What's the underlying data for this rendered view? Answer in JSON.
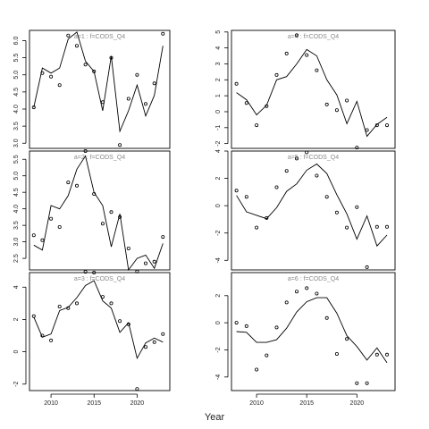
{
  "chart_data": {
    "type": "line",
    "xlabel": "Year",
    "xlim": [
      2007.5,
      2023.8
    ],
    "xticks": [
      2010,
      2015,
      2020
    ],
    "panels": [
      {
        "title": "a=1 : f=CODS_Q4",
        "ylim": [
          2.85,
          6.3
        ],
        "yticks": [
          3.0,
          3.5,
          4.0,
          4.5,
          5.0,
          5.5,
          6.0
        ],
        "yticklabels": [
          "3.0",
          "3.5",
          "4.0",
          "4.5",
          "5.0",
          "5.5",
          "6.0"
        ],
        "show_x_ticks": false,
        "series": [
          {
            "type": "line",
            "x": [
              2008,
              2009,
              2010,
              2011,
              2012,
              2013,
              2014,
              2015,
              2016,
              2017,
              2018,
              2019,
              2020,
              2021,
              2022,
              2023
            ],
            "y": [
              4.05,
              5.2,
              5.05,
              5.2,
              6.05,
              6.25,
              5.4,
              5.1,
              3.95,
              5.55,
              3.35,
              3.95,
              4.7,
              3.8,
              4.4,
              5.85
            ]
          },
          {
            "type": "points",
            "x": [
              2008,
              2009,
              2010,
              2011,
              2012,
              2013,
              2014,
              2015,
              2016,
              2017,
              2018,
              2019,
              2020,
              2021,
              2022,
              2023
            ],
            "y": [
              4.05,
              5.05,
              4.95,
              4.7,
              6.15,
              5.85,
              5.3,
              5.1,
              4.2,
              5.5,
              2.95,
              4.3,
              5.0,
              4.15,
              4.75,
              6.2
            ]
          }
        ]
      },
      {
        "title": "a=2 : f=CODS_Q4",
        "ylim": [
          2.15,
          5.75
        ],
        "yticks": [
          2.5,
          3.0,
          3.5,
          4.0,
          4.5,
          5.0,
          5.5
        ],
        "yticklabels": [
          "2.5",
          "3.0",
          "3.5",
          "4.0",
          "4.5",
          "5.0",
          "5.5"
        ],
        "show_x_ticks": false,
        "series": [
          {
            "type": "line",
            "x": [
              2008,
              2009,
              2010,
              2011,
              2012,
              2013,
              2014,
              2015,
              2016,
              2017,
              2018,
              2019,
              2020,
              2021,
              2022,
              2023
            ],
            "y": [
              2.9,
              2.75,
              4.1,
              4.0,
              4.4,
              5.2,
              5.6,
              4.5,
              4.1,
              2.85,
              3.85,
              2.15,
              2.5,
              2.6,
              2.2,
              2.95
            ]
          },
          {
            "type": "points",
            "x": [
              2008,
              2009,
              2010,
              2011,
              2012,
              2013,
              2014,
              2015,
              2016,
              2017,
              2018,
              2019,
              2020,
              2021,
              2022,
              2023
            ],
            "y": [
              3.2,
              3.05,
              3.7,
              3.45,
              4.8,
              4.7,
              5.75,
              4.45,
              3.55,
              3.9,
              3.75,
              2.8,
              2.1,
              2.35,
              2.4,
              3.15
            ]
          }
        ]
      },
      {
        "title": "a=3 : f=CODS_Q4",
        "ylim": [
          -2.4,
          4.9
        ],
        "yticks": [
          -2,
          0,
          2,
          4
        ],
        "yticklabels": [
          "-2",
          "0",
          "2",
          "4"
        ],
        "show_x_ticks": true,
        "series": [
          {
            "type": "line",
            "x": [
              2008,
              2009,
              2010,
              2011,
              2012,
              2013,
              2014,
              2015,
              2016,
              2017,
              2018,
              2019,
              2020,
              2021,
              2022,
              2023
            ],
            "y": [
              2.15,
              0.9,
              1.1,
              2.55,
              2.75,
              3.35,
              4.1,
              4.4,
              3.15,
              2.7,
              1.2,
              1.8,
              -0.4,
              0.55,
              0.85,
              0.6
            ]
          },
          {
            "type": "points",
            "x": [
              2008,
              2009,
              2010,
              2011,
              2012,
              2013,
              2014,
              2015,
              2016,
              2017,
              2018,
              2019,
              2020,
              2021,
              2022,
              2023
            ],
            "y": [
              2.2,
              1.0,
              0.7,
              2.8,
              2.7,
              3.0,
              4.95,
              4.9,
              3.4,
              3.0,
              1.9,
              1.7,
              -2.3,
              0.3,
              0.6,
              1.1
            ]
          }
        ]
      },
      {
        "title": "a=4 : f=CODS_Q4",
        "ylim": [
          -2.3,
          5.1
        ],
        "yticks": [
          -2,
          -1,
          0,
          1,
          2,
          3,
          4,
          5
        ],
        "yticklabels": [
          "-2",
          "-1",
          "0",
          "1",
          "2",
          "3",
          "4",
          "5"
        ],
        "show_x_ticks": false,
        "series": [
          {
            "type": "line",
            "x": [
              2008,
              2009,
              2010,
              2011,
              2012,
              2013,
              2014,
              2015,
              2016,
              2017,
              2018,
              2019,
              2020,
              2021,
              2022,
              2023
            ],
            "y": [
              1.2,
              0.75,
              -0.2,
              0.4,
              2.0,
              2.2,
              3.0,
              3.9,
              3.5,
              2.0,
              1.05,
              -0.75,
              0.65,
              -1.55,
              -0.8,
              -0.35
            ]
          },
          {
            "type": "points",
            "x": [
              2008,
              2009,
              2010,
              2011,
              2012,
              2013,
              2014,
              2015,
              2016,
              2017,
              2018,
              2019,
              2020,
              2021,
              2022,
              2023
            ],
            "y": [
              1.75,
              0.55,
              -0.85,
              0.35,
              2.3,
              3.65,
              4.8,
              3.55,
              2.6,
              0.45,
              0.1,
              0.7,
              -2.25,
              -1.15,
              -0.85,
              -0.85
            ]
          }
        ]
      },
      {
        "title": "a=5 : f=CODS_Q4",
        "ylim": [
          -4.7,
          4.0
        ],
        "yticks": [
          -4,
          -2,
          0,
          2,
          4
        ],
        "yticklabels": [
          "-4",
          "-2",
          "0",
          "2",
          "4"
        ],
        "show_x_ticks": false,
        "series": [
          {
            "type": "line",
            "x": [
              2008,
              2009,
              2010,
              2011,
              2012,
              2013,
              2014,
              2015,
              2016,
              2017,
              2018,
              2019,
              2020,
              2021,
              2022,
              2023
            ],
            "y": [
              0.75,
              -0.45,
              -0.7,
              -0.95,
              -0.15,
              1.05,
              1.6,
              2.6,
              3.05,
              2.35,
              0.8,
              -0.6,
              -2.45,
              -0.75,
              -2.95,
              -2.15
            ]
          },
          {
            "type": "points",
            "x": [
              2008,
              2009,
              2010,
              2011,
              2012,
              2013,
              2014,
              2015,
              2016,
              2017,
              2018,
              2019,
              2020,
              2021,
              2022,
              2023
            ],
            "y": [
              1.1,
              0.65,
              -1.6,
              -0.9,
              1.35,
              2.55,
              3.45,
              3.9,
              2.2,
              0.65,
              -0.5,
              -1.6,
              -0.1,
              -4.5,
              -1.55,
              -1.55
            ]
          }
        ]
      },
      {
        "title": "a=6 : f=CODS_Q4",
        "ylim": [
          -5.0,
          3.7
        ],
        "yticks": [
          -4,
          -2,
          0,
          2
        ],
        "yticklabels": [
          "-4",
          "-2",
          "0",
          "2"
        ],
        "show_x_ticks": true,
        "series": [
          {
            "type": "line",
            "x": [
              2008,
              2009,
              2010,
              2011,
              2012,
              2013,
              2014,
              2015,
              2016,
              2017,
              2018,
              2019,
              2020,
              2021,
              2022,
              2023
            ],
            "y": [
              -0.65,
              -0.7,
              -1.45,
              -1.45,
              -1.25,
              -0.4,
              0.8,
              1.55,
              1.85,
              1.85,
              0.7,
              -0.95,
              -1.75,
              -2.75,
              -1.85,
              -2.95
            ]
          },
          {
            "type": "points",
            "x": [
              2008,
              2009,
              2010,
              2011,
              2012,
              2013,
              2014,
              2015,
              2016,
              2017,
              2018,
              2019,
              2020,
              2021,
              2022,
              2023
            ],
            "y": [
              0.0,
              -0.25,
              -3.45,
              -2.4,
              -0.35,
              1.5,
              2.3,
              2.55,
              2.15,
              0.35,
              -2.3,
              -1.2,
              -4.45,
              -4.45,
              -2.35,
              -2.35
            ]
          }
        ]
      }
    ]
  }
}
